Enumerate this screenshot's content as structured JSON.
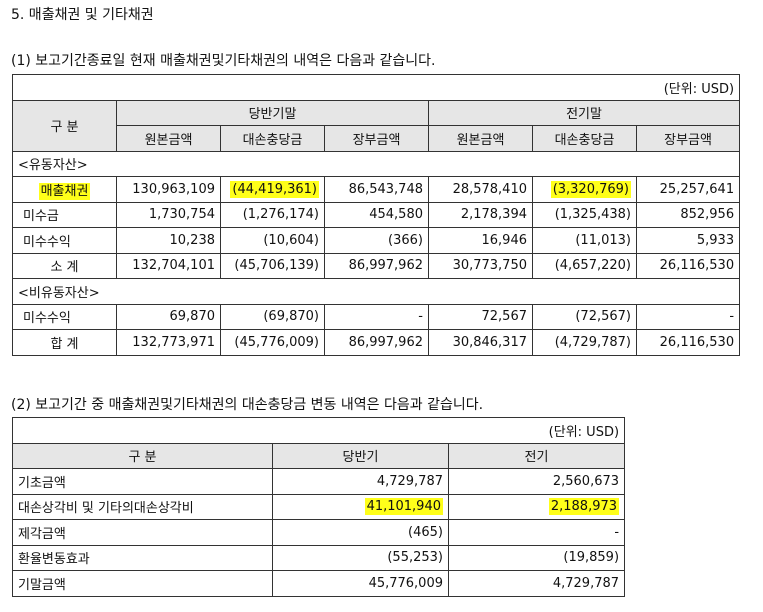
{
  "section_title": "5. 매출채권 및 기타채권",
  "table1": {
    "caption": "(1) 보고기간종료일 현재 매출채권및기타채권의 내역은 다음과 같습니다.",
    "unit": "(단위: USD)",
    "header": {
      "category": "구  분",
      "current_period": "당반기말",
      "prior_period": "전기말",
      "columns": [
        "원본금액",
        "대손충당금",
        "장부금액",
        "원본금액",
        "대손충당금",
        "장부금액"
      ]
    },
    "current_assets_label": "<유동자산>",
    "current_rows": [
      {
        "label": "매출채권",
        "values": [
          "130,963,109",
          "(44,419,361)",
          "86,543,748",
          "28,578,410",
          "(3,320,769)",
          "25,257,641"
        ]
      },
      {
        "label": "미수금",
        "values": [
          "1,730,754",
          "(1,276,174)",
          "454,580",
          "2,178,394",
          "(1,325,438)",
          "852,956"
        ]
      },
      {
        "label": "미수수익",
        "values": [
          "10,238",
          "(10,604)",
          "(366)",
          "16,946",
          "(11,013)",
          "5,933"
        ]
      }
    ],
    "subtotal": {
      "label": "소  계",
      "values": [
        "132,704,101",
        "(45,706,139)",
        "86,997,962",
        "30,773,750",
        "(4,657,220)",
        "26,116,530"
      ]
    },
    "noncurrent_assets_label": "<비유동자산>",
    "noncurrent_rows": [
      {
        "label": "미수수익",
        "values": [
          "69,870",
          "(69,870)",
          "-",
          "72,567",
          "(72,567)",
          "-"
        ]
      }
    ],
    "total": {
      "label": "합  계",
      "values": [
        "132,773,971",
        "(45,776,009)",
        "86,997,962",
        "30,846,317",
        "(4,729,787)",
        "26,116,530"
      ]
    }
  },
  "table2": {
    "caption": "(2) 보고기간 중 매출채권및기타채권의 대손충당금 변동 내역은 다음과 같습니다.",
    "unit": "(단위: USD)",
    "header": {
      "category": "구  분",
      "current": "당반기",
      "prior": "전기"
    },
    "rows": [
      {
        "label": "기초금액",
        "current": "4,729,787",
        "prior": "2,560,673"
      },
      {
        "label": "대손상각비 및 기타의대손상각비",
        "current": "41,101,940",
        "prior": "2,188,973"
      },
      {
        "label": "제각금액",
        "current": "(465)",
        "prior": "-"
      },
      {
        "label": "환율변동효과",
        "current": "(55,253)",
        "prior": "(19,859)"
      },
      {
        "label": "기말금액",
        "current": "45,776,009",
        "prior": "4,729,787"
      }
    ]
  },
  "highlight_color": "#ffff1a"
}
